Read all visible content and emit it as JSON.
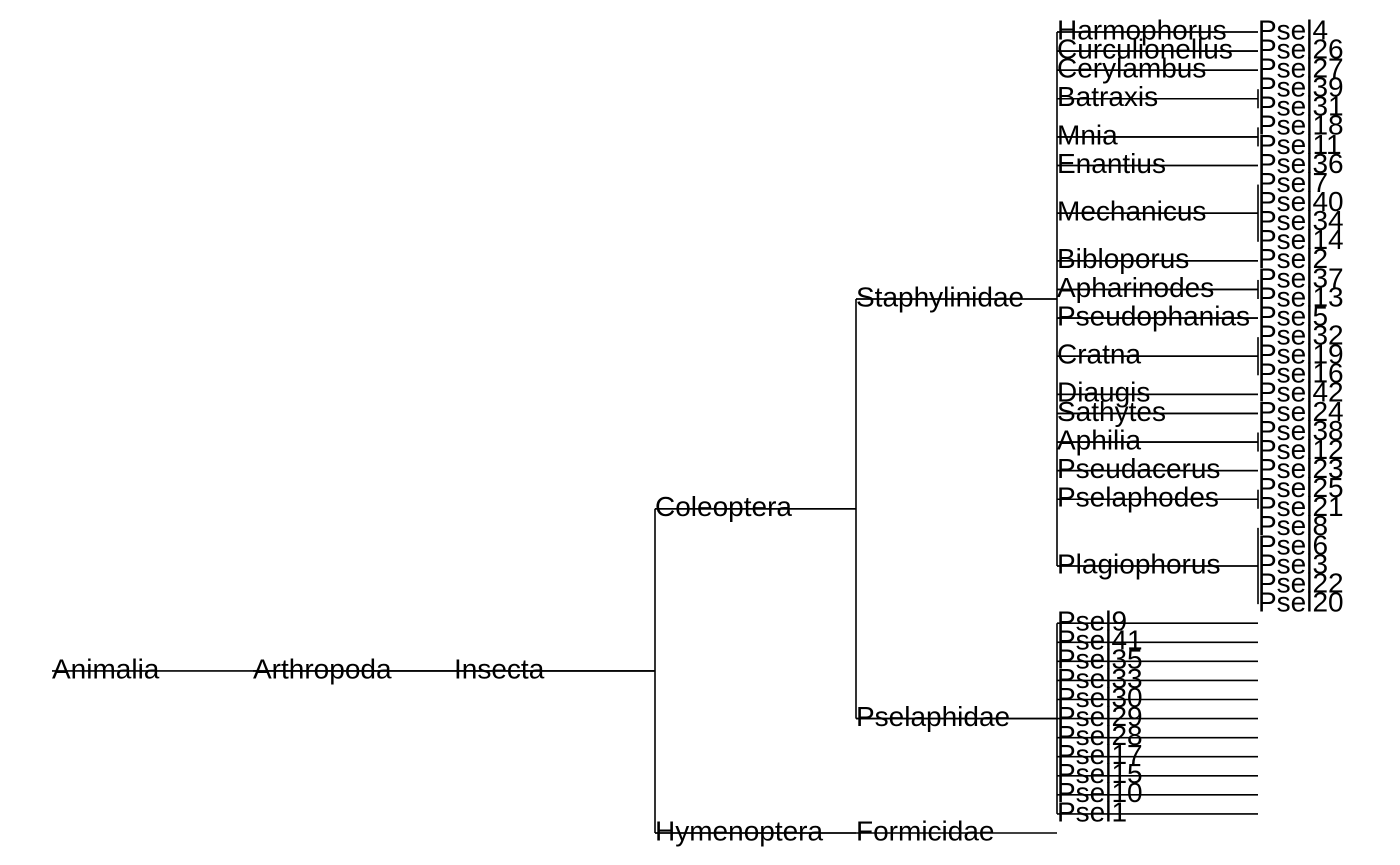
{
  "colors": {
    "line": "#000000",
    "text": "#000000",
    "background": "#ffffff"
  },
  "tree": {
    "label": "Animalia",
    "children": [
      {
        "label": "Arthropoda",
        "children": [
          {
            "label": "Insecta",
            "children": [
              {
                "label": "Coleoptera",
                "children": [
                  {
                    "label": "Staphylinidae",
                    "children": [
                      {
                        "label": "Harmophorus",
                        "children": [
                          {
                            "label": "Psel4"
                          }
                        ]
                      },
                      {
                        "label": "Curculionellus",
                        "children": [
                          {
                            "label": "Psel26"
                          }
                        ]
                      },
                      {
                        "label": "Cerylambus",
                        "children": [
                          {
                            "label": "Psel27"
                          }
                        ]
                      },
                      {
                        "label": "Batraxis",
                        "children": [
                          {
                            "label": "Psel39"
                          },
                          {
                            "label": "Psel31"
                          }
                        ]
                      },
                      {
                        "label": "Mnia",
                        "children": [
                          {
                            "label": "Psel18"
                          },
                          {
                            "label": "Psel11"
                          }
                        ]
                      },
                      {
                        "label": "Enantius",
                        "children": [
                          {
                            "label": "Psel36"
                          }
                        ]
                      },
                      {
                        "label": "Mechanicus",
                        "children": [
                          {
                            "label": "Psel7"
                          },
                          {
                            "label": "Psel40"
                          },
                          {
                            "label": "Psel34"
                          },
                          {
                            "label": "Psel14"
                          }
                        ]
                      },
                      {
                        "label": "Bibloporus",
                        "children": [
                          {
                            "label": "Psel2"
                          }
                        ]
                      },
                      {
                        "label": "Apharinodes",
                        "children": [
                          {
                            "label": "Psel37"
                          },
                          {
                            "label": "Psel13"
                          }
                        ]
                      },
                      {
                        "label": "Pseudophanias",
                        "children": [
                          {
                            "label": "Psel5"
                          }
                        ]
                      },
                      {
                        "label": "Cratna",
                        "children": [
                          {
                            "label": "Psel32"
                          },
                          {
                            "label": "Psel19"
                          },
                          {
                            "label": "Psel16"
                          }
                        ]
                      },
                      {
                        "label": "Diaugis",
                        "children": [
                          {
                            "label": "Psel42"
                          }
                        ]
                      },
                      {
                        "label": "Sathytes",
                        "children": [
                          {
                            "label": "Psel24"
                          }
                        ]
                      },
                      {
                        "label": "Aphilia",
                        "children": [
                          {
                            "label": "Psel38"
                          },
                          {
                            "label": "Psel12"
                          }
                        ]
                      },
                      {
                        "label": "Pseudacerus",
                        "children": [
                          {
                            "label": "Psel23"
                          }
                        ]
                      },
                      {
                        "label": "Pselaphodes",
                        "children": [
                          {
                            "label": "Psel25"
                          },
                          {
                            "label": "Psel21"
                          }
                        ]
                      },
                      {
                        "label": "Plagiophorus",
                        "children": [
                          {
                            "label": "Psel8"
                          },
                          {
                            "label": "Psel6"
                          },
                          {
                            "label": "Psel3"
                          },
                          {
                            "label": "Psel22"
                          },
                          {
                            "label": "Psel20"
                          }
                        ]
                      }
                    ]
                  },
                  {
                    "label": "Pselaphidae",
                    "children": [
                      {
                        "label": "Psel9"
                      },
                      {
                        "label": "Psel41"
                      },
                      {
                        "label": "Psel35"
                      },
                      {
                        "label": "Psel33"
                      },
                      {
                        "label": "Psel30"
                      },
                      {
                        "label": "Psel29"
                      },
                      {
                        "label": "Psel28"
                      },
                      {
                        "label": "Psel17"
                      },
                      {
                        "label": "Psel15"
                      },
                      {
                        "label": "Psel10"
                      },
                      {
                        "label": "Psel1"
                      }
                    ]
                  }
                ]
              },
              {
                "label": "Hymenoptera",
                "children": [
                  {
                    "label": "Formicidae"
                  }
                ]
              }
            ]
          }
        ]
      }
    ]
  }
}
